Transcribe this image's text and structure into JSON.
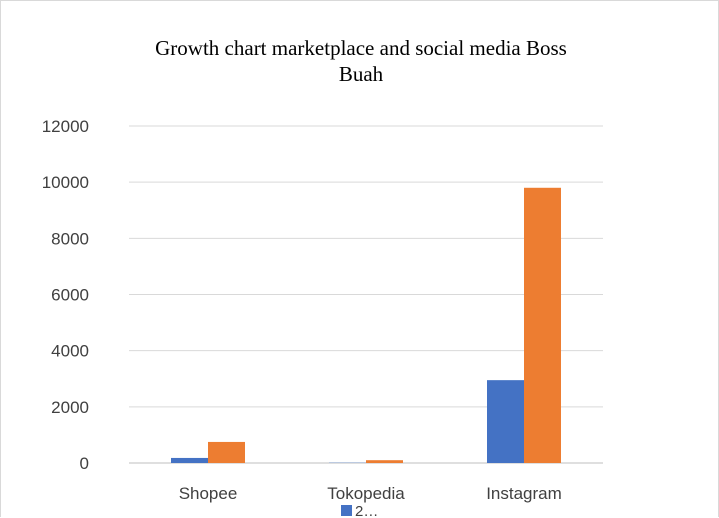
{
  "chart_data": {
    "type": "bar",
    "title_lines": [
      "Growth chart marketplace and social media Boss",
      "Buah"
    ],
    "categories": [
      "Shopee",
      "Tokopedia",
      "Instagram"
    ],
    "series": [
      {
        "name": "2…",
        "color": "#4472C4",
        "values": [
          180,
          10,
          2950
        ]
      },
      {
        "name": "",
        "color": "#ED7D31",
        "values": [
          750,
          100,
          9800
        ]
      }
    ],
    "ylim": [
      0,
      12000
    ],
    "yticks": [
      0,
      2000,
      4000,
      6000,
      8000,
      10000,
      12000
    ],
    "grid": true,
    "legend_position": "bottom"
  }
}
